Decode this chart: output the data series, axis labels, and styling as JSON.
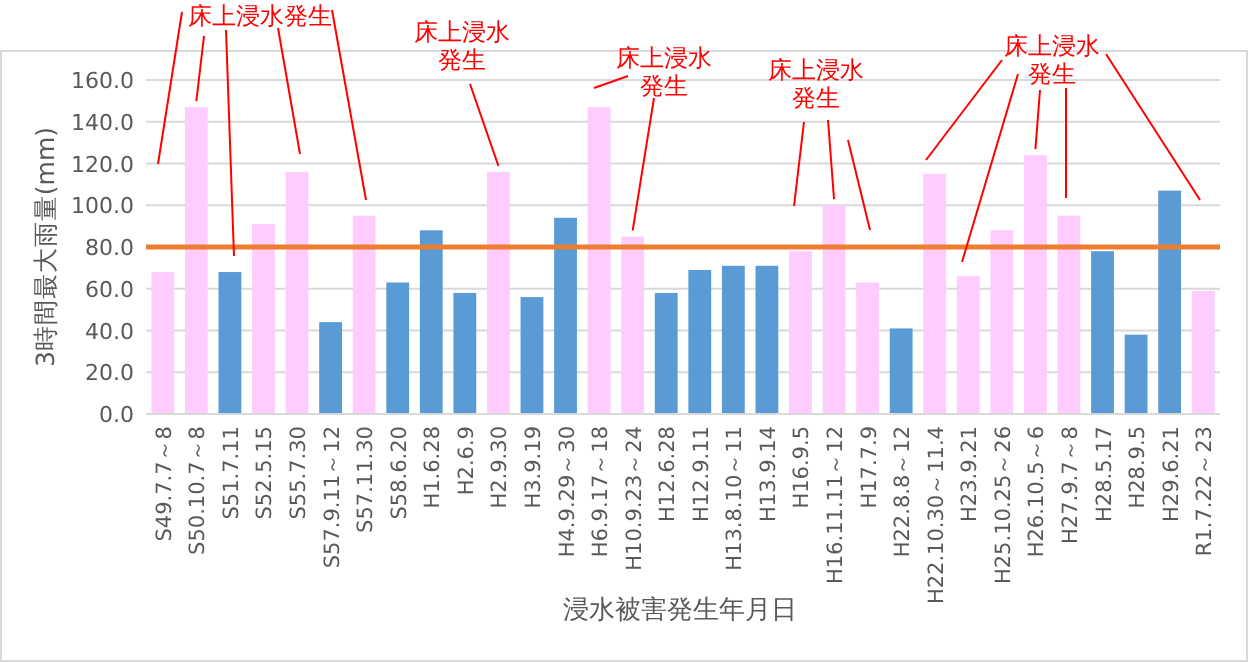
{
  "chart_data": {
    "type": "bar",
    "ylabel": "3時間最大雨量(mm)",
    "xlabel": "浸水被害発生年月日",
    "categories": [
      "S49.7.7～8",
      "S50.10.7～8",
      "S51.7.11",
      "S52.5.15",
      "S55.7.30",
      "S57.9.11～12",
      "S57.11.30",
      "S58.6.20",
      "H1.6.28",
      "H2.6.9",
      "H2.9.30",
      "H3.9.19",
      "H4.9.29～30",
      "H6.9.17～18",
      "H10.9.23～24",
      "H12.6.28",
      "H12.9.11",
      "H13.8.10～11",
      "H13.9.14",
      "H16.9.5",
      "H16.11.11～12",
      "H17.7.9",
      "H22.8.8～12",
      "H22.10.30～11.4",
      "H23.9.21",
      "H25.10.25～26",
      "H26.10.5～6",
      "H27.9.7～8",
      "H28.5.17",
      "H28.9.5",
      "H29.6.21",
      "R1.7.22～23"
    ],
    "values": [
      68,
      147,
      68,
      91,
      116,
      44,
      95,
      63,
      88,
      58,
      116,
      56,
      94,
      147,
      85,
      58,
      69,
      71,
      71,
      78,
      100,
      63,
      41,
      115,
      66,
      88,
      124,
      95,
      78,
      38,
      107,
      59
    ],
    "colors": [
      "#ffccff",
      "#ffccff",
      "#5b9bd5",
      "#ffccff",
      "#ffccff",
      "#5b9bd5",
      "#ffccff",
      "#5b9bd5",
      "#5b9bd5",
      "#5b9bd5",
      "#ffccff",
      "#5b9bd5",
      "#5b9bd5",
      "#ffccff",
      "#ffccff",
      "#5b9bd5",
      "#5b9bd5",
      "#5b9bd5",
      "#5b9bd5",
      "#ffccff",
      "#ffccff",
      "#ffccff",
      "#5b9bd5",
      "#ffccff",
      "#ffccff",
      "#ffccff",
      "#ffccff",
      "#ffccff",
      "#5b9bd5",
      "#5b9bd5",
      "#5b9bd5",
      "#ffccff"
    ],
    "ylim": [
      0,
      160
    ],
    "yticks": [
      {
        "value": 0,
        "label": "0.0"
      },
      {
        "value": 20,
        "label": "20.0"
      },
      {
        "value": 40,
        "label": "40.0"
      },
      {
        "value": 60,
        "label": "60.0"
      },
      {
        "value": 80,
        "label": "80.0"
      },
      {
        "value": 100,
        "label": "100.0"
      },
      {
        "value": 120,
        "label": "120.0"
      },
      {
        "value": 140,
        "label": "140.0"
      },
      {
        "value": 160,
        "label": "160.0"
      }
    ],
    "grid": "y",
    "ref_lines": [
      {
        "axis": "y",
        "value": 80,
        "color": "#ed7d31"
      }
    ],
    "annotations": [
      {
        "text": "床上浸水発生",
        "x": "S50.10.7～8",
        "y": 147
      },
      {
        "text": "床上浸水発生",
        "x": "H2.9.30",
        "y": 116
      },
      {
        "text": "床上浸水発生",
        "x": "H10.9.23～24",
        "y": 85
      },
      {
        "text": "床上浸水発生",
        "x": "H16.11.11～12",
        "y": 100
      },
      {
        "text": "床上浸水発生",
        "x": "H26.10.5～6",
        "y": 124
      }
    ]
  }
}
